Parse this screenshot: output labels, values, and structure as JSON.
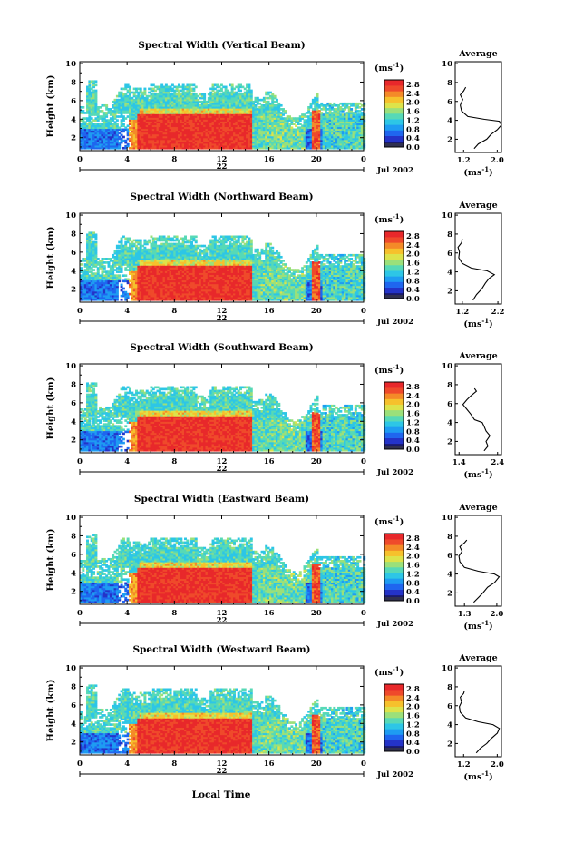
{
  "figure": {
    "date_label": "Jul 2002",
    "x_axis_label": "Local Time",
    "colorbar_unit": "(ms",
    "colorbar_unit_exp": "-1",
    "colorbar_unit_close": ")",
    "average_title": "Average",
    "average_unit": "(ms",
    "average_unit_exp": "-1",
    "average_unit_close": ")"
  },
  "colors": {
    "scale": [
      "#1a1a6e",
      "#2433c8",
      "#1f66ef",
      "#1e9cf2",
      "#2dc6e6",
      "#57d9b6",
      "#9be07a",
      "#dde34a",
      "#f6c12c",
      "#f48a28",
      "#ef4a2b",
      "#e8282b"
    ],
    "scale_dark": "#303050"
  },
  "chart_data": [
    {
      "type": "heatmap",
      "title": "Spectral Width (Vertical Beam)",
      "ylabel": "Height (km)",
      "xlim": [
        0,
        24
      ],
      "ylim": [
        0.6,
        10.2
      ],
      "x_ticks": [
        "0",
        "4",
        "8",
        "12",
        "16",
        "20",
        "0"
      ],
      "x_tick_values": [
        0,
        4,
        8,
        12,
        16,
        20,
        24
      ],
      "y_ticks": [
        "2",
        "4",
        "6",
        "8",
        "10"
      ],
      "y_tick_values": [
        2,
        4,
        6,
        8,
        10
      ],
      "day_label": "22",
      "colorbar_ticks": [
        "0.0",
        "0.4",
        "0.8",
        "1.2",
        "1.6",
        "2.0",
        "2.4",
        "2.8"
      ],
      "colorbar_range": [
        0.0,
        3.0
      ],
      "average": {
        "xlim": [
          1.0,
          2.1
        ],
        "x_ticks": [
          "1.2",
          "2.0"
        ],
        "x_tick_values": [
          1.2,
          2.0
        ],
        "ylim": [
          0.6,
          10.2
        ],
        "y_ticks": [
          "2",
          "4",
          "6",
          "8",
          "10"
        ],
        "y_tick_values": [
          2,
          4,
          6,
          8,
          10
        ],
        "profile": [
          [
            1.45,
            1.0
          ],
          [
            1.55,
            1.5
          ],
          [
            1.75,
            2.0
          ],
          [
            1.85,
            2.5
          ],
          [
            2.0,
            3.0
          ],
          [
            2.1,
            3.5
          ],
          [
            2.05,
            3.9
          ],
          [
            1.7,
            4.1
          ],
          [
            1.3,
            4.4
          ],
          [
            1.15,
            5.0
          ],
          [
            1.12,
            5.6
          ],
          [
            1.18,
            6.2
          ],
          [
            1.12,
            6.7
          ],
          [
            1.2,
            7.1
          ],
          [
            1.25,
            7.5
          ]
        ]
      }
    },
    {
      "type": "heatmap",
      "title": "Spectral Width (Northward Beam)",
      "ylabel": "Height (km)",
      "xlim": [
        0,
        24
      ],
      "ylim": [
        0.6,
        10.2
      ],
      "x_ticks": [
        "0",
        "4",
        "8",
        "12",
        "16",
        "20",
        "0"
      ],
      "x_tick_values": [
        0,
        4,
        8,
        12,
        16,
        20,
        24
      ],
      "y_ticks": [
        "2",
        "4",
        "6",
        "8",
        "10"
      ],
      "y_tick_values": [
        2,
        4,
        6,
        8,
        10
      ],
      "day_label": "22",
      "colorbar_ticks": [
        "0.0",
        "0.4",
        "0.8",
        "1.2",
        "1.6",
        "2.0",
        "2.4",
        "2.8"
      ],
      "colorbar_range": [
        0.0,
        3.0
      ],
      "average": {
        "xlim": [
          1.0,
          2.3
        ],
        "x_ticks": [
          "1.2",
          "2.2"
        ],
        "x_tick_values": [
          1.2,
          2.2
        ],
        "ylim": [
          0.6,
          10.2
        ],
        "y_ticks": [
          "2",
          "4",
          "6",
          "8",
          "10"
        ],
        "y_tick_values": [
          2,
          4,
          6,
          8,
          10
        ],
        "profile": [
          [
            1.5,
            1.0
          ],
          [
            1.6,
            1.6
          ],
          [
            1.75,
            2.2
          ],
          [
            1.85,
            2.8
          ],
          [
            1.95,
            3.3
          ],
          [
            2.1,
            3.7
          ],
          [
            1.9,
            4.1
          ],
          [
            1.45,
            4.4
          ],
          [
            1.2,
            4.9
          ],
          [
            1.1,
            5.5
          ],
          [
            1.12,
            6.1
          ],
          [
            1.08,
            6.6
          ],
          [
            1.18,
            7.1
          ],
          [
            1.2,
            7.5
          ]
        ]
      }
    },
    {
      "type": "heatmap",
      "title": "Spectral Width (Southward Beam)",
      "ylabel": "Height (km)",
      "xlim": [
        0,
        24
      ],
      "ylim": [
        0.6,
        10.2
      ],
      "x_ticks": [
        "0",
        "4",
        "8",
        "12",
        "16",
        "20",
        "0"
      ],
      "x_tick_values": [
        0,
        4,
        8,
        12,
        16,
        20,
        24
      ],
      "y_ticks": [
        "2",
        "4",
        "6",
        "8",
        "10"
      ],
      "y_tick_values": [
        2,
        4,
        6,
        8,
        10
      ],
      "day_label": "22",
      "colorbar_ticks": [
        "0.0",
        "0.4",
        "0.8",
        "1.2",
        "1.6",
        "2.0",
        "2.4",
        "2.8"
      ],
      "colorbar_range": [
        0.0,
        3.0
      ],
      "average": {
        "xlim": [
          1.3,
          2.5
        ],
        "x_ticks": [
          "1.4",
          "2.4"
        ],
        "x_tick_values": [
          1.4,
          2.4
        ],
        "ylim": [
          0.6,
          10.2
        ],
        "y_ticks": [
          "2",
          "4",
          "6",
          "8",
          "10"
        ],
        "y_tick_values": [
          2,
          4,
          6,
          8,
          10
        ],
        "profile": [
          [
            2.05,
            1.0
          ],
          [
            2.15,
            1.5
          ],
          [
            2.1,
            2.0
          ],
          [
            2.2,
            2.6
          ],
          [
            2.1,
            3.1
          ],
          [
            2.05,
            3.6
          ],
          [
            2.0,
            4.0
          ],
          [
            1.8,
            4.3
          ],
          [
            1.7,
            4.9
          ],
          [
            1.6,
            5.4
          ],
          [
            1.5,
            5.9
          ],
          [
            1.6,
            6.4
          ],
          [
            1.7,
            6.8
          ],
          [
            1.85,
            7.3
          ],
          [
            1.8,
            7.6
          ]
        ]
      }
    },
    {
      "type": "heatmap",
      "title": "Spectral Width (Eastward Beam)",
      "ylabel": "Height (km)",
      "xlim": [
        0,
        24
      ],
      "ylim": [
        0.6,
        10.2
      ],
      "x_ticks": [
        "0",
        "4",
        "8",
        "12",
        "16",
        "20",
        "0"
      ],
      "x_tick_values": [
        0,
        4,
        8,
        12,
        16,
        20,
        24
      ],
      "y_ticks": [
        "2",
        "4",
        "6",
        "8",
        "10"
      ],
      "y_tick_values": [
        2,
        4,
        6,
        8,
        10
      ],
      "day_label": "22",
      "colorbar_ticks": [
        "0.0",
        "0.4",
        "0.8",
        "1.2",
        "1.6",
        "2.0",
        "2.4",
        "2.8"
      ],
      "colorbar_range": [
        0.0,
        3.0
      ],
      "average": {
        "xlim": [
          1.1,
          2.1
        ],
        "x_ticks": [
          "1.3",
          "2.0"
        ],
        "x_tick_values": [
          1.3,
          2.0
        ],
        "ylim": [
          0.6,
          10.2
        ],
        "y_ticks": [
          "2",
          "4",
          "6",
          "8",
          "10"
        ],
        "y_tick_values": [
          2,
          4,
          6,
          8,
          10
        ],
        "profile": [
          [
            1.5,
            1.0
          ],
          [
            1.6,
            1.5
          ],
          [
            1.7,
            2.0
          ],
          [
            1.8,
            2.6
          ],
          [
            1.95,
            3.1
          ],
          [
            2.05,
            3.7
          ],
          [
            1.95,
            4.0
          ],
          [
            1.6,
            4.3
          ],
          [
            1.3,
            4.7
          ],
          [
            1.2,
            5.3
          ],
          [
            1.18,
            5.9
          ],
          [
            1.25,
            6.4
          ],
          [
            1.2,
            6.9
          ],
          [
            1.3,
            7.3
          ],
          [
            1.35,
            7.6
          ]
        ]
      }
    },
    {
      "type": "heatmap",
      "title": "Spectral Width (Westward Beam)",
      "ylabel": "Height (km)",
      "xlim": [
        0,
        24
      ],
      "ylim": [
        0.6,
        10.2
      ],
      "x_ticks": [
        "0",
        "4",
        "8",
        "12",
        "16",
        "20",
        "0"
      ],
      "x_tick_values": [
        0,
        4,
        8,
        12,
        16,
        20,
        24
      ],
      "y_ticks": [
        "2",
        "4",
        "6",
        "8",
        "10"
      ],
      "y_tick_values": [
        2,
        4,
        6,
        8,
        10
      ],
      "day_label": "22",
      "colorbar_ticks": [
        "0.0",
        "0.4",
        "0.8",
        "1.2",
        "1.6",
        "2.0",
        "2.4",
        "2.8"
      ],
      "colorbar_range": [
        0.0,
        3.0
      ],
      "average": {
        "xlim": [
          1.0,
          2.1
        ],
        "x_ticks": [
          "1.2",
          "2.0"
        ],
        "x_tick_values": [
          1.2,
          2.0
        ],
        "ylim": [
          0.6,
          10.2
        ],
        "y_ticks": [
          "2",
          "4",
          "6",
          "8",
          "10"
        ],
        "y_tick_values": [
          2,
          4,
          6,
          8,
          10
        ],
        "profile": [
          [
            1.5,
            1.0
          ],
          [
            1.6,
            1.5
          ],
          [
            1.75,
            2.0
          ],
          [
            1.85,
            2.5
          ],
          [
            2.0,
            3.1
          ],
          [
            2.05,
            3.6
          ],
          [
            1.9,
            4.0
          ],
          [
            1.55,
            4.3
          ],
          [
            1.25,
            4.7
          ],
          [
            1.12,
            5.3
          ],
          [
            1.1,
            5.9
          ],
          [
            1.15,
            6.4
          ],
          [
            1.12,
            6.9
          ],
          [
            1.2,
            7.3
          ],
          [
            1.22,
            7.6
          ]
        ]
      }
    }
  ]
}
